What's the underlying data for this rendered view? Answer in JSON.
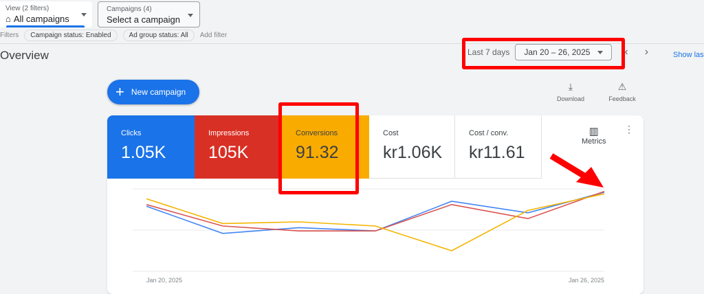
{
  "toolbar": {
    "view_label": "View (2 filters)",
    "view_value": "All campaigns",
    "campaigns_label": "Campaigns (4)",
    "campaigns_value": "Select a campaign"
  },
  "filters": {
    "label": "Filters",
    "chips": [
      "Campaign status: Enabled",
      "Ad group status: All"
    ],
    "add": "Add filter"
  },
  "page_title": "Overview",
  "date": {
    "preset": "Last 7 days",
    "range": "Jan 20 – 26, 2025",
    "show_last": "Show las"
  },
  "actions": {
    "new_campaign": "New campaign",
    "download": "Download",
    "feedback": "Feedback",
    "metrics": "Metrics"
  },
  "tiles": [
    {
      "label": "Clicks",
      "value": "1.05K",
      "color": "#1a73e8"
    },
    {
      "label": "Impressions",
      "value": "105K",
      "color": "#d93025"
    },
    {
      "label": "Conversions",
      "value": "91.32",
      "color": "#f9ab00"
    },
    {
      "label": "Cost",
      "value": "kr1.06K",
      "color": "#ffffff"
    },
    {
      "label": "Cost / conv.",
      "value": "kr11.61",
      "color": "#ffffff"
    }
  ],
  "chart_data": {
    "type": "line",
    "x": [
      "Jan 20, 2025",
      "Jan 21, 2025",
      "Jan 22, 2025",
      "Jan 23, 2025",
      "Jan 24, 2025",
      "Jan 25, 2025",
      "Jan 26, 2025"
    ],
    "x_tick_labels": [
      "Jan 20, 2025",
      "Jan 26, 2025"
    ],
    "ylim": [
      0,
      100
    ],
    "grid": true,
    "series": [
      {
        "name": "Clicks",
        "color": "#4285f4",
        "values": [
          79,
          46,
          53,
          49,
          85,
          71,
          96
        ]
      },
      {
        "name": "Impressions",
        "color": "#d9534f",
        "values": [
          81,
          55,
          49,
          49,
          81,
          64,
          97
        ]
      },
      {
        "name": "Conversions",
        "color": "#f4b400",
        "values": [
          88,
          58,
          60,
          55,
          25,
          74,
          94
        ]
      }
    ]
  },
  "annotation_color": "#ff0000"
}
